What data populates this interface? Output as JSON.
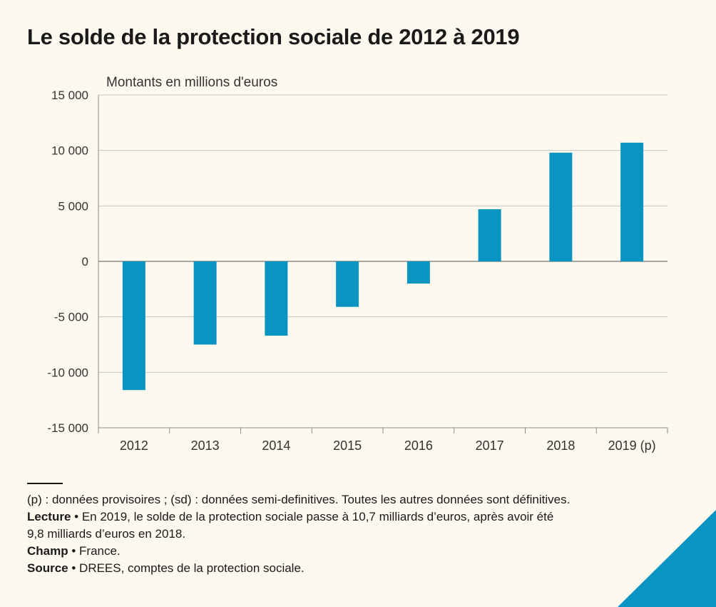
{
  "title": "Le solde de la protection sociale de 2012 à 2019",
  "chart_data": {
    "type": "bar",
    "ylabel": "Montants en millions d'euros",
    "categories": [
      "2012",
      "2013",
      "2014",
      "2015",
      "2016",
      "2017",
      "2018",
      "2019 (p)"
    ],
    "values": [
      -11600,
      -7500,
      -6700,
      -4100,
      -2000,
      4700,
      9800,
      10700
    ],
    "ylim": [
      -15000,
      15000
    ],
    "yticks": [
      15000,
      10000,
      5000,
      0,
      -5000,
      -10000,
      -15000
    ],
    "ytick_labels": [
      "15 000",
      "10 000",
      "5 000",
      "0",
      "-5 000",
      "-10 000",
      "-15 000"
    ],
    "grid": true,
    "bar_color": "#0a94c2"
  },
  "notes": {
    "provisional": "(p) : données provisoires ; (sd) : données semi-definitives. Toutes les autres données sont définitives.",
    "lecture_label": "Lecture",
    "lecture_line1": " • En 2019, le solde de la protection sociale passe  à 10,7 milliards d’euros, après avoir été",
    "lecture_line2": "9,8 milliards d’euros en 2018.",
    "champ_label": "Champ",
    "champ_text": " • France.",
    "source_label": "Source",
    "source_text": " • DREES, comptes de la protection sociale."
  }
}
